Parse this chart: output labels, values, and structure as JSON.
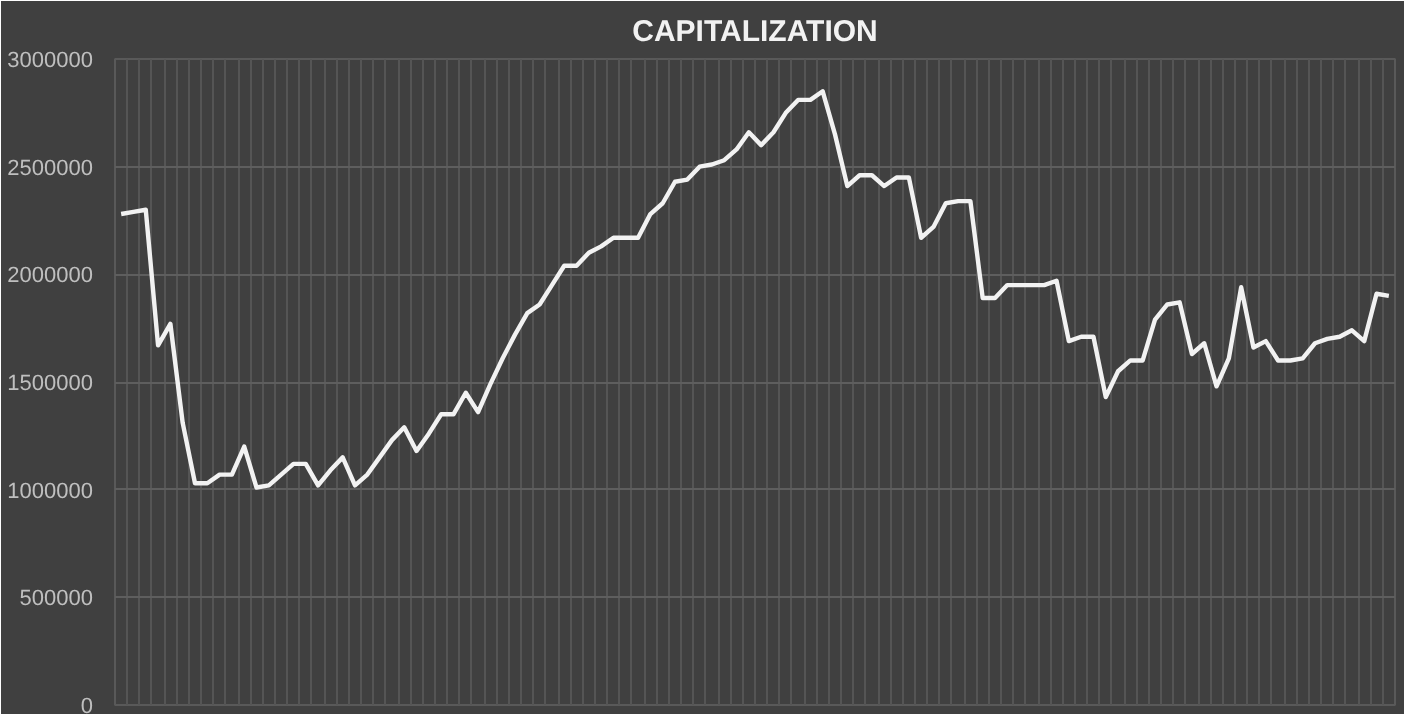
{
  "chart_data": {
    "type": "line",
    "title": "CAPITALIZATION",
    "categories": [
      null,
      null,
      null,
      null,
      null,
      null,
      null,
      null,
      null,
      null,
      null,
      null,
      null,
      null,
      null,
      null,
      null,
      null,
      null,
      null,
      null,
      null,
      null,
      null,
      null,
      null,
      null,
      null,
      null,
      null,
      null,
      null,
      null,
      null,
      null,
      null,
      null,
      null,
      null,
      null,
      null,
      null,
      null,
      null,
      null,
      null,
      null,
      null,
      null,
      null,
      null,
      null,
      null,
      null,
      null,
      null,
      null,
      null,
      null,
      null,
      null,
      null,
      null,
      null,
      null,
      null,
      null,
      null,
      null,
      null,
      null,
      null,
      null,
      null,
      null,
      null,
      null,
      null,
      null,
      null,
      null,
      null,
      null,
      null,
      null,
      null,
      null,
      null,
      null,
      null,
      null,
      null,
      null,
      null,
      null,
      null,
      null,
      null,
      null,
      null,
      null,
      null,
      null,
      null
    ],
    "series": [
      {
        "color": "#f2f2f2",
        "values": [
          2280000,
          2290000,
          2300000,
          1670000,
          1770000,
          1310000,
          1030000,
          1030000,
          1070000,
          1070000,
          1200000,
          1010000,
          1020000,
          1070000,
          1120000,
          1120000,
          1020000,
          1090000,
          1150000,
          1020000,
          1070000,
          1150000,
          1230000,
          1290000,
          1180000,
          1260000,
          1350000,
          1350000,
          1450000,
          1360000,
          1490000,
          1610000,
          1720000,
          1820000,
          1860000,
          1950000,
          2040000,
          2040000,
          2100000,
          2130000,
          2170000,
          2170000,
          2170000,
          2280000,
          2330000,
          2430000,
          2440000,
          2500000,
          2510000,
          2530000,
          2580000,
          2660000,
          2600000,
          2660000,
          2750000,
          2810000,
          2810000,
          2850000,
          2650000,
          2410000,
          2460000,
          2460000,
          2410000,
          2450000,
          2450000,
          2170000,
          2220000,
          2330000,
          2340000,
          2340000,
          1890000,
          1890000,
          1950000,
          1950000,
          1950000,
          1950000,
          1970000,
          1690000,
          1710000,
          1710000,
          1430000,
          1550000,
          1600000,
          1600000,
          1790000,
          1860000,
          1870000,
          1630000,
          1680000,
          1480000,
          1610000,
          1940000,
          1660000,
          1690000,
          1600000,
          1600000,
          1610000,
          1680000,
          1700000,
          1710000,
          1740000,
          1690000,
          1910000,
          1900000
        ]
      }
    ],
    "ylim": [
      0,
      3000000
    ],
    "yticks": [
      0,
      500000,
      1000000,
      1500000,
      2000000,
      2500000,
      3000000
    ],
    "grid": true,
    "tick_labels": "y",
    "marker": "none",
    "line_style": "solid"
  }
}
